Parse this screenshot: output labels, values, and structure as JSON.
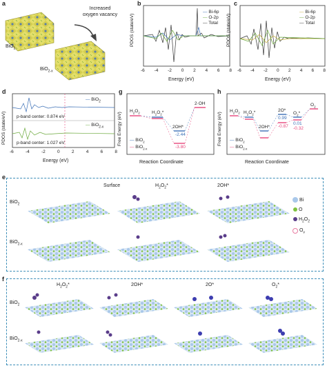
{
  "labels": {
    "a": "a",
    "b": "b",
    "c": "c",
    "d": "d",
    "e": "e",
    "f": "f",
    "g": "g",
    "h": "h"
  },
  "panel_a": {
    "arrow_text_1": "Increased",
    "arrow_text_2": "oxygen vacancy",
    "struct1": "BiO",
    "struct1_sub": "2",
    "struct2": "BiO",
    "struct2_sub": "2-x"
  },
  "colors": {
    "bi": "#a9c8ea",
    "o": "#7fc241",
    "h": "#5a3d8a",
    "ov": "#e87aa0",
    "blue_line": "#3b6fb6",
    "green_line": "#6aa83a",
    "pink": "#e6457a",
    "frame": "#3b8db8",
    "poly": "#e3de6a"
  },
  "chart_data": [
    {
      "id": "b",
      "type": "line",
      "title": "",
      "xlabel": "Energy (eV)",
      "ylabel": "PDOS (state/eV)",
      "xlim": [
        -6,
        8
      ],
      "x_ticks": [
        "-6",
        "-4",
        "-2",
        "0",
        "2",
        "4",
        "6",
        "8"
      ],
      "series": [
        {
          "name": "Bi-6p",
          "color": "#3b6fb6"
        },
        {
          "name": "O-2p",
          "color": "#6aa83a"
        },
        {
          "name": "Total",
          "color": "#333333"
        }
      ],
      "legend_position": "top-right"
    },
    {
      "id": "c",
      "type": "line",
      "title": "",
      "xlabel": "Energy (eV)",
      "ylabel": "PDOS (state/eV)",
      "xlim": [
        -6,
        8
      ],
      "x_ticks": [
        "-6",
        "-4",
        "-2",
        "0",
        "2",
        "4",
        "6",
        "8"
      ],
      "series": [
        {
          "name": "Bi-6p",
          "color": "#c9b23c"
        },
        {
          "name": "O-2p",
          "color": "#6aa83a"
        },
        {
          "name": "Total",
          "color": "#333333"
        }
      ],
      "legend_position": "top-right"
    },
    {
      "id": "d",
      "type": "line",
      "xlabel": "Energy (eV)",
      "ylabel": "PDOS (state/eV)",
      "xlim": [
        -6,
        8
      ],
      "x_ticks": [
        "-6",
        "-4",
        "-2",
        "0",
        "2",
        "4",
        "6",
        "8"
      ],
      "series": [
        {
          "name": "BiO2",
          "color": "#3b6fb6"
        },
        {
          "name": "BiO2-x",
          "color": "#6aa83a"
        }
      ],
      "annotations": [
        "p-band center: 0.874 eV",
        "p-band center: 1.027 eV"
      ],
      "legend_position": "top-right"
    },
    {
      "id": "g",
      "type": "line",
      "xlabel": "Reaction Coordinate",
      "ylabel": "Free Energy (eV)",
      "states": [
        "H2O2",
        "H2O2*",
        "2OH*",
        "2·OH"
      ],
      "series": [
        {
          "name": "BiO2",
          "color": "#3b6fb6",
          "values": [
            0,
            -0.05,
            -2.44,
            null
          ]
        },
        {
          "name": "BiO2-x",
          "color": "#e6457a",
          "values": [
            0,
            -0.05,
            -3.8,
            null
          ]
        }
      ],
      "data_labels": [
        "-2.44",
        "-3.80"
      ],
      "legend_position": "bottom-left"
    },
    {
      "id": "h",
      "type": "line",
      "xlabel": "Reaction Coordinate",
      "ylabel": "Free Energy (eV)",
      "states": [
        "H2O2",
        "H2O2*",
        "2OH*",
        "2O*",
        "O2*",
        "O2"
      ],
      "series": [
        {
          "name": "BiO2",
          "color": "#3b6fb6",
          "values": [
            0,
            -0.1,
            -1.6,
            0.99,
            0.01,
            null
          ]
        },
        {
          "name": "BiO2-x",
          "color": "#e6457a",
          "values": [
            0,
            -0.2,
            -2.2,
            -0.87,
            -0.32,
            null
          ]
        }
      ],
      "data_labels": [
        "0.99",
        "-0.87",
        "0.01",
        "-0.32"
      ],
      "legend_position": "bottom-left"
    }
  ],
  "panel_e": {
    "columns": [
      "Surface",
      "H",
      "2OH*"
    ],
    "col2_main": "H",
    "col2_sub": "2",
    "col2_tail": "O",
    "col2_sub2": "2",
    "col2_star": "*",
    "rows": [
      "BiO",
      "BiO"
    ],
    "row_subs": [
      "2",
      "2-x"
    ],
    "legend": [
      {
        "label": "Bi"
      },
      {
        "label": "O"
      },
      {
        "label": "H",
        "sub": "2",
        "tail": "O",
        "sub2": "2"
      },
      {
        "label": "O",
        "sub": "v"
      }
    ]
  },
  "panel_f": {
    "columns": [
      "H",
      "2OH*",
      "2O*",
      "O"
    ],
    "rows": [
      "BiO",
      "BiO"
    ],
    "row_subs": [
      "2",
      "2-x"
    ]
  }
}
